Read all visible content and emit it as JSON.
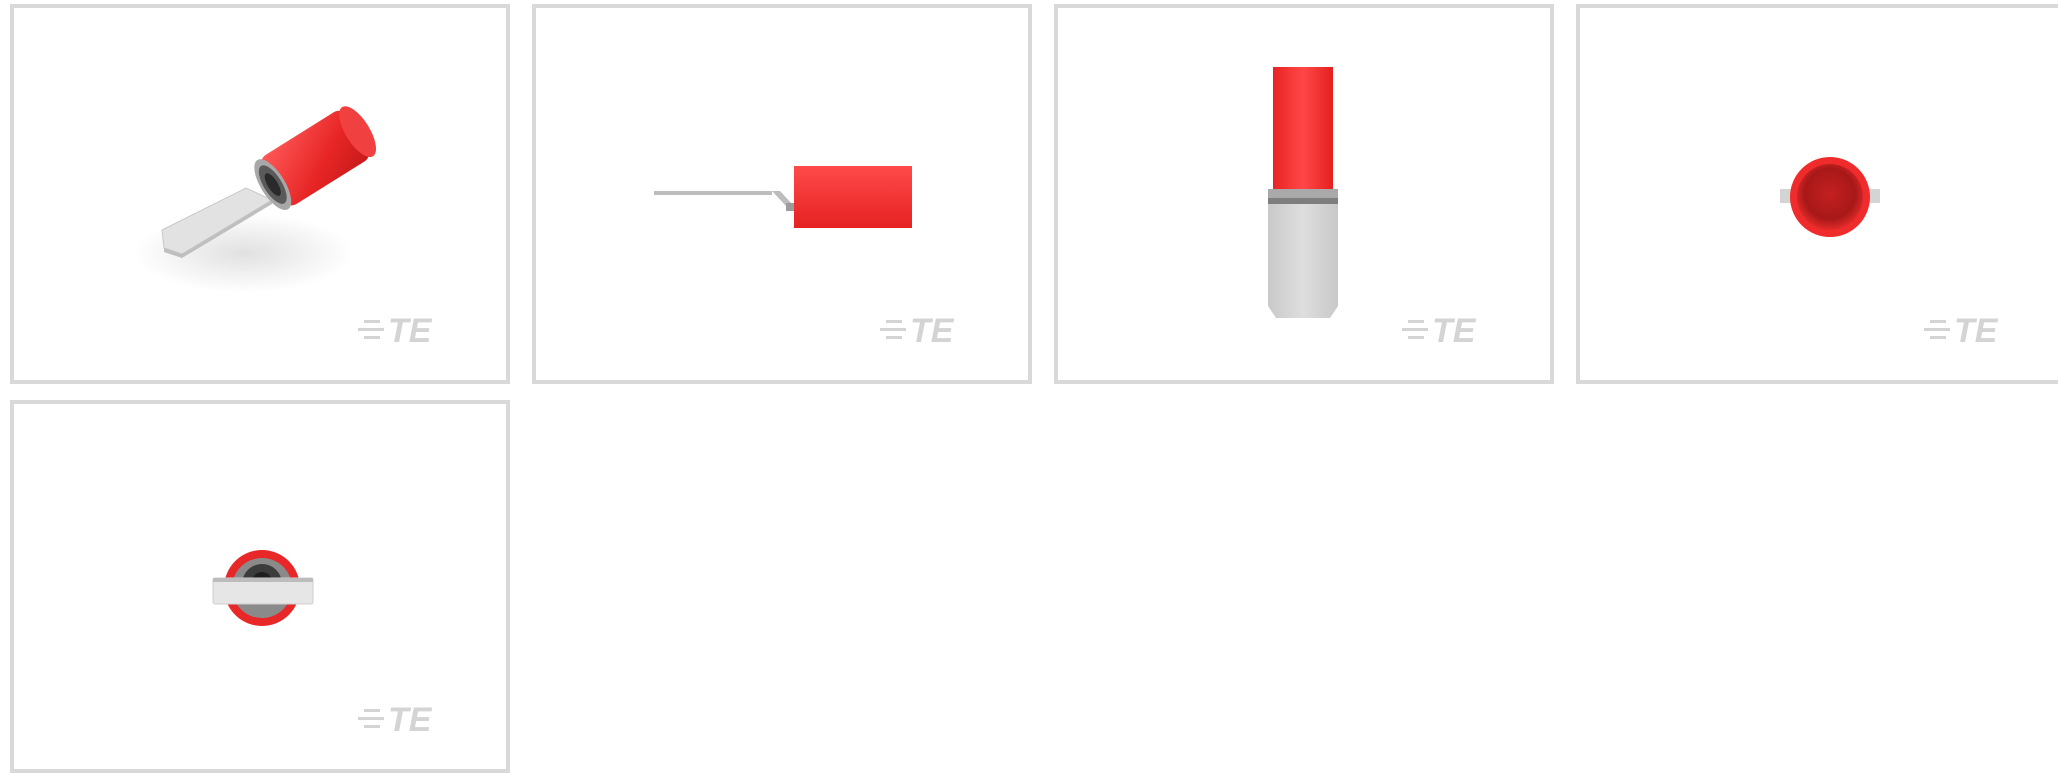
{
  "gallery": {
    "thumbnails": [
      {
        "view": "isometric",
        "brand_watermark": "TE"
      },
      {
        "view": "side",
        "brand_watermark": "TE"
      },
      {
        "view": "top",
        "brand_watermark": "TE"
      },
      {
        "view": "end-insulation",
        "brand_watermark": "TE"
      },
      {
        "view": "end-tab",
        "brand_watermark": "TE"
      }
    ]
  },
  "colors": {
    "insulation_red": "#ef2b2b",
    "metal_tin": "#d6d6d6",
    "border": "#d9d9d9",
    "watermark": "#d4d4d4"
  }
}
